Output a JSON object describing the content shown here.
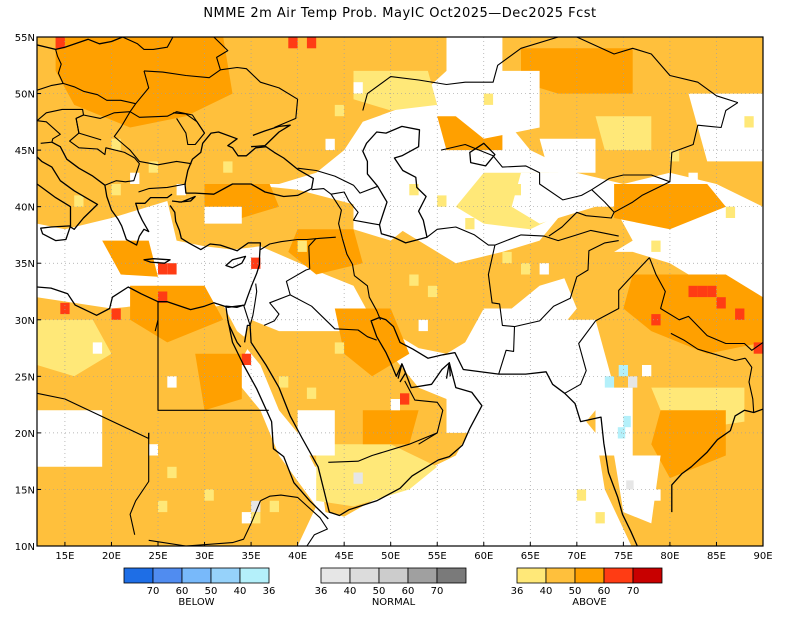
{
  "title": "NMME 2m Air Temp Prob. MayIC  Oct2025—Dec2025 Fcst",
  "map": {
    "lon_range": [
      12,
      90
    ],
    "lat_range": [
      10,
      55
    ],
    "lat_ticks": [
      {
        "value": 10,
        "label": "10N"
      },
      {
        "value": 15,
        "label": "15N"
      },
      {
        "value": 20,
        "label": "20N"
      },
      {
        "value": 25,
        "label": "25N"
      },
      {
        "value": 30,
        "label": "30N"
      },
      {
        "value": 35,
        "label": "35N"
      },
      {
        "value": 40,
        "label": "40N"
      },
      {
        "value": 45,
        "label": "45N"
      },
      {
        "value": 50,
        "label": "50N"
      },
      {
        "value": 55,
        "label": "55N"
      }
    ],
    "lon_ticks": [
      {
        "value": 15,
        "label": "15E"
      },
      {
        "value": 20,
        "label": "20E"
      },
      {
        "value": 25,
        "label": "25E"
      },
      {
        "value": 30,
        "label": "30E"
      },
      {
        "value": 35,
        "label": "35E"
      },
      {
        "value": 40,
        "label": "40E"
      },
      {
        "value": 45,
        "label": "45E"
      },
      {
        "value": 50,
        "label": "50E"
      },
      {
        "value": 55,
        "label": "55E"
      },
      {
        "value": 60,
        "label": "60E"
      },
      {
        "value": 65,
        "label": "65E"
      },
      {
        "value": 70,
        "label": "70E"
      },
      {
        "value": 75,
        "label": "75E"
      },
      {
        "value": 80,
        "label": "80E"
      },
      {
        "value": 85,
        "label": "85E"
      },
      {
        "value": 90,
        "label": "90E"
      }
    ],
    "colors": {
      "above_36": "#ffe878",
      "above_40": "#ffc03c",
      "above_50": "#ffa000",
      "above_60": "#ff3c14",
      "above_70": "#c80000",
      "normal_36": "#e6e6e6",
      "normal_40": "#dcdcdc",
      "normal_50": "#cccccc",
      "normal_60": "#a0a0a0",
      "normal_70": "#7a7a7a",
      "below_36": "#b4f0fa",
      "below_40": "#96d2fa",
      "below_50": "#78b9fa",
      "below_60": "#508cf0",
      "below_70": "#1e6ee6",
      "land_outline": "#000000",
      "grid_line": "#a0a0a0"
    }
  },
  "legend": {
    "below": {
      "title": "BELOW",
      "numbers": [
        "70",
        "60",
        "50",
        "40",
        "36"
      ],
      "colors": [
        "#1e6ee6",
        "#508cf0",
        "#78b9fa",
        "#96d2fa",
        "#b4f0fa"
      ]
    },
    "normal": {
      "title": "NORMAL",
      "numbers": [
        "36",
        "40",
        "50",
        "60",
        "70"
      ],
      "colors": [
        "#e6e6e6",
        "#dcdcdc",
        "#cccccc",
        "#a0a0a0",
        "#7a7a7a"
      ]
    },
    "above": {
      "title": "ABOVE",
      "numbers": [
        "36",
        "40",
        "50",
        "60",
        "70"
      ],
      "colors": [
        "#ffe878",
        "#ffc03c",
        "#ffa000",
        "#ff3c14",
        "#c80000"
      ]
    }
  }
}
